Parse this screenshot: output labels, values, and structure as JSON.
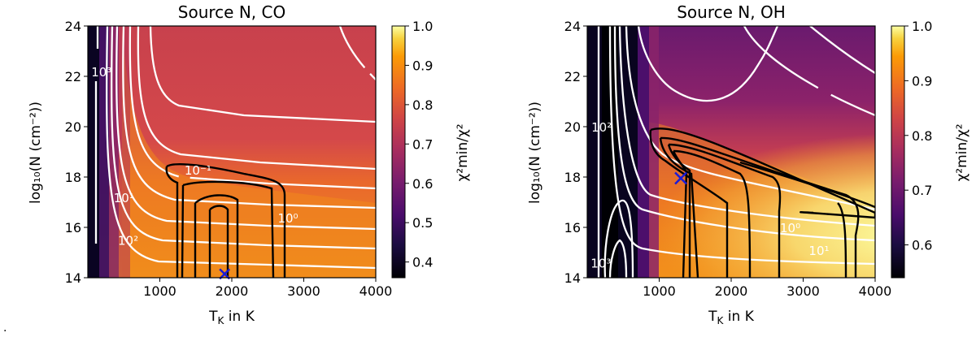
{
  "chart_data": [
    {
      "type": "heatmap",
      "title": "Source N, CO",
      "xlabel": "T",
      "xlabel_sub": "K",
      "xlabel_suffix": " in K",
      "ylabel": "log₁₀(N (cm⁻²))",
      "xlim": [
        0,
        4000
      ],
      "ylim": [
        14,
        24
      ],
      "xticks": [
        "1000",
        "2000",
        "3000",
        "4000"
      ],
      "yticks": [
        "14",
        "16",
        "18",
        "20",
        "22",
        "24"
      ],
      "colorbar": {
        "label": "χ²min/χ²",
        "range": [
          0.36,
          1.0
        ],
        "ticks": [
          "0.4",
          "0.5",
          "0.6",
          "0.7",
          "0.8",
          "0.9",
          "1.0"
        ]
      },
      "best_fit": {
        "T": 1900,
        "logN": 14.15
      },
      "contour_labels": [
        {
          "text": "10⁻¹",
          "T": 1530,
          "logN": 18.1
        },
        {
          "text": "10⁰",
          "T": 2780,
          "logN": 16.2
        },
        {
          "text": "10¹",
          "T": 500,
          "logN": 17.0
        },
        {
          "text": "10²",
          "T": 560,
          "logN": 15.3
        },
        {
          "text": "10³",
          "T": 190,
          "logN": 22.0
        }
      ],
      "colormap": "inferno"
    },
    {
      "type": "heatmap",
      "title": "Source N, OH",
      "xlabel": "T",
      "xlabel_sub": "K",
      "xlabel_suffix": " in K",
      "ylabel": "log₁₀(N (cm⁻²))",
      "xlim": [
        0,
        4000
      ],
      "ylim": [
        14,
        24
      ],
      "xticks": [
        "1000",
        "2000",
        "3000",
        "4000"
      ],
      "yticks": [
        "14",
        "16",
        "18",
        "20",
        "22",
        "24"
      ],
      "colorbar": {
        "label": "χ²min/χ²",
        "range": [
          0.54,
          1.0
        ],
        "ticks": [
          "0.6",
          "0.7",
          "0.8",
          "0.9",
          "1.0"
        ]
      },
      "best_fit": {
        "T": 1300,
        "logN": 17.95
      },
      "contour_labels": [
        {
          "text": "10⁰",
          "T": 2820,
          "logN": 15.8
        },
        {
          "text": "10¹",
          "T": 3220,
          "logN": 14.9
        },
        {
          "text": "10²",
          "T": 200,
          "logN": 19.8
        },
        {
          "text": "10³",
          "T": 190,
          "logN": 14.4
        }
      ],
      "colormap": "inferno"
    }
  ],
  "stray_mark": "."
}
